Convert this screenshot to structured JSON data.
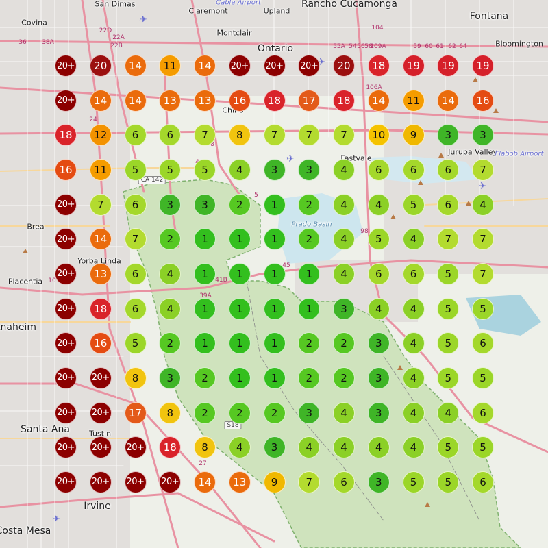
{
  "map": {
    "cities": [
      {
        "id": "san-dimas",
        "label": "San Dimas",
        "size": "small"
      },
      {
        "id": "claremont",
        "label": "Claremont",
        "size": "small"
      },
      {
        "id": "upland",
        "label": "Upland",
        "size": "small"
      },
      {
        "id": "rancho-cucamonga",
        "label": "Rancho Cucamonga",
        "size": "normal"
      },
      {
        "id": "fontana",
        "label": "Fontana",
        "size": "normal"
      },
      {
        "id": "covina",
        "label": "Covina",
        "size": "small"
      },
      {
        "id": "montclair",
        "label": "Montclair",
        "size": "small"
      },
      {
        "id": "ontario",
        "label": "Ontario",
        "size": "normal"
      },
      {
        "id": "bloomington",
        "label": "Bloomington",
        "size": "small"
      },
      {
        "id": "chino",
        "label": "Chino",
        "size": "small"
      },
      {
        "id": "fastvale",
        "label": "Fastvale",
        "size": "small"
      },
      {
        "id": "jurupa-valley",
        "label": "Jurupa Valley",
        "size": "small"
      },
      {
        "id": "brea",
        "label": "Brea",
        "size": "small"
      },
      {
        "id": "yorba-linda",
        "label": "Yorba Linda",
        "size": "small"
      },
      {
        "id": "placentia",
        "label": "Placentia",
        "size": "small"
      },
      {
        "id": "anaheim",
        "label": "Anaheim",
        "size": "normal"
      },
      {
        "id": "santa-ana",
        "label": "Santa Ana",
        "size": "normal"
      },
      {
        "id": "tustin",
        "label": "Tustin",
        "size": "small"
      },
      {
        "id": "irvine",
        "label": "Irvine",
        "size": "normal"
      },
      {
        "id": "costa-mesa",
        "label": "Costa Mesa",
        "size": "normal"
      }
    ],
    "airports": [
      {
        "id": "cable-airport",
        "label": "Cable Airport"
      },
      {
        "id": "flabob-airport",
        "label": "Flabob Airport"
      }
    ],
    "shields": [
      "CA 142",
      "S18"
    ],
    "exits": [
      "38A",
      "36",
      "22D",
      "22A",
      "22B",
      "8",
      "55A",
      "54",
      "56",
      "58",
      "59",
      "60",
      "109A",
      "61",
      "62",
      "64",
      "106A",
      "104",
      "27",
      "24",
      "41B",
      "39A",
      "98",
      "45",
      "10",
      "4",
      "5"
    ],
    "water_labels": [
      "Prado Basin"
    ]
  },
  "markers": {
    "bins": [
      {
        "max": 1,
        "color": "#33bf1e",
        "text": "#111111"
      },
      {
        "max": 2,
        "color": "#56c822",
        "text": "#111111"
      },
      {
        "max": 3,
        "color": "#3fb527",
        "text": "#111111"
      },
      {
        "max": 4,
        "color": "#8bd026",
        "text": "#111111"
      },
      {
        "max": 5,
        "color": "#9bd628",
        "text": "#111111"
      },
      {
        "max": 6,
        "color": "#a4d82b",
        "text": "#111111"
      },
      {
        "max": 7,
        "color": "#b3db2f",
        "text": "#111111"
      },
      {
        "max": 8,
        "color": "#f1c40f",
        "text": "#111111"
      },
      {
        "max": 9,
        "color": "#f0b800",
        "text": "#111111"
      },
      {
        "max": 10,
        "color": "#f5c300",
        "text": "#111111"
      },
      {
        "max": 11,
        "color": "#f59c00",
        "text": "#111111"
      },
      {
        "max": 12,
        "color": "#f39200",
        "text": "#111111"
      },
      {
        "max": 13,
        "color": "#ea6b0c",
        "text": "#ffffff"
      },
      {
        "max": 14,
        "color": "#ea6b0c",
        "text": "#ffffff"
      },
      {
        "max": 15,
        "color": "#e24c17",
        "text": "#ffffff"
      },
      {
        "max": 16,
        "color": "#e44b12",
        "text": "#ffffff"
      },
      {
        "max": 17,
        "color": "#e35a1a",
        "text": "#ffffff"
      },
      {
        "max": 18,
        "color": "#d9232a",
        "text": "#ffffff"
      },
      {
        "max": 19,
        "color": "#d5202a",
        "text": "#ffffff"
      },
      {
        "max": 20,
        "color": "#9b0f0f",
        "text": "#ffffff"
      },
      {
        "max": 99,
        "color": "#8c0000",
        "text": "#ffffff"
      }
    ],
    "rows": [
      [
        "20+",
        "20",
        "14",
        "11",
        "14",
        "20+",
        "20+",
        "20+",
        "20",
        "18",
        "19",
        "19",
        "19"
      ],
      [
        "20+",
        "14",
        "14",
        "13",
        "13",
        "16",
        "18",
        "17",
        "18",
        "14",
        "11",
        "14",
        "16"
      ],
      [
        "18",
        "12",
        "6",
        "6",
        "7",
        "8",
        "7",
        "7",
        "7",
        "10",
        "9",
        "3",
        "3"
      ],
      [
        "16",
        "11",
        "5",
        "5",
        "5",
        "4",
        "3",
        "3",
        "4",
        "6",
        "6",
        "6",
        "7"
      ],
      [
        "20+",
        "7",
        "6",
        "3",
        "3",
        "2",
        "1",
        "2",
        "4",
        "4",
        "5",
        "6",
        "4"
      ],
      [
        "20+",
        "14",
        "7",
        "2",
        "1",
        "1",
        "1",
        "2",
        "4",
        "5",
        "4",
        "7",
        "7"
      ],
      [
        "20+",
        "13",
        "6",
        "4",
        "1",
        "1",
        "1",
        "1",
        "4",
        "6",
        "6",
        "5",
        "7"
      ],
      [
        "20+",
        "18",
        "6",
        "4",
        "1",
        "1",
        "1",
        "1",
        "3",
        "4",
        "4",
        "5",
        "5"
      ],
      [
        "20+",
        "16",
        "5",
        "2",
        "1",
        "1",
        "1",
        "2",
        "2",
        "3",
        "4",
        "5",
        "6"
      ],
      [
        "20+",
        "20+",
        "8",
        "3",
        "2",
        "1",
        "1",
        "2",
        "2",
        "3",
        "4",
        "5",
        "5"
      ],
      [
        "20+",
        "20+",
        "17",
        "8",
        "2",
        "2",
        "2",
        "3",
        "4",
        "3",
        "4",
        "4",
        "6"
      ],
      [
        "20+",
        "20+",
        "20+",
        "18",
        "8",
        "4",
        "3",
        "4",
        "4",
        "4",
        "4",
        "5",
        "5"
      ],
      [
        "20+",
        "20+",
        "20+",
        "20+",
        "14",
        "13",
        "9",
        "7",
        "6",
        "3",
        "5",
        "5",
        "6"
      ]
    ]
  }
}
